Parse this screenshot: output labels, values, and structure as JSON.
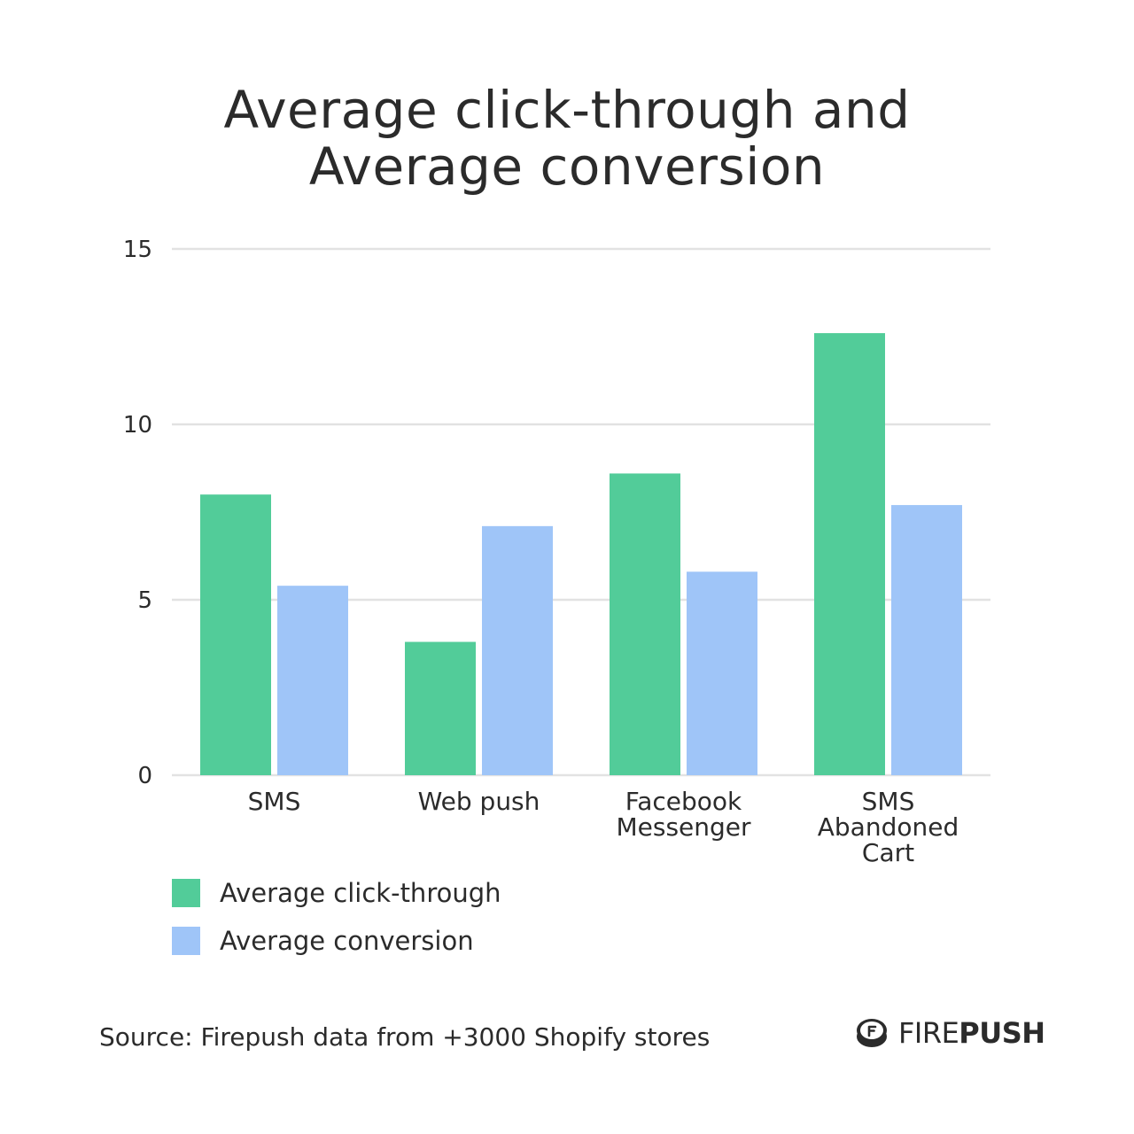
{
  "title_lines": [
    "Average click-through and",
    "Average conversion"
  ],
  "source": "Source: Firepush data from +3000 Shopify stores",
  "logo": {
    "part1": "FIRE",
    "part2": "PUSH",
    "icon": "firepush-logo-icon"
  },
  "colors": {
    "click_through": "#52cc99",
    "conversion": "#9fc5f8",
    "grid": "#e2e2e2",
    "text": "#2b2b2b"
  },
  "chart_data": {
    "type": "bar",
    "title": "Average click-through and Average conversion",
    "categories": [
      [
        "SMS"
      ],
      [
        "Web push"
      ],
      [
        "Facebook",
        "Messenger"
      ],
      [
        "SMS",
        "Abandoned",
        "Cart"
      ]
    ],
    "series": [
      {
        "name": "Average click-through",
        "values": [
          8.0,
          3.8,
          8.6,
          12.6
        ]
      },
      {
        "name": "Average conversion",
        "values": [
          5.4,
          7.1,
          5.8,
          7.7
        ]
      }
    ],
    "ylim": [
      0,
      15
    ],
    "yticks": [
      0,
      5,
      10,
      15
    ],
    "grid": true,
    "legend": "bottom-left"
  }
}
